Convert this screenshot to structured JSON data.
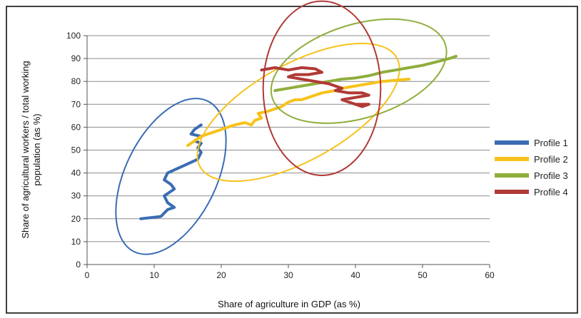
{
  "chart_data": {
    "type": "line",
    "title": "",
    "xlabel": "Share of agriculture in GDP (as %)",
    "ylabel_line1": "Share of agricultural workers / total working",
    "ylabel_line2": "population (as %)",
    "xlim": [
      0,
      60
    ],
    "ylim": [
      0,
      100
    ],
    "xticks": [
      0,
      10,
      20,
      30,
      40,
      50,
      60
    ],
    "yticks": [
      0,
      10,
      20,
      30,
      40,
      50,
      60,
      70,
      80,
      90,
      100
    ],
    "xtick_labels": [
      "0",
      "10",
      "20",
      "30",
      "40",
      "50",
      "60"
    ],
    "ytick_labels": [
      "0",
      "10",
      "20",
      "30",
      "40",
      "50",
      "60",
      "70",
      "80",
      "90",
      "100"
    ],
    "grid": "horizontal",
    "legend": "right",
    "series": [
      {
        "name": "Profile 1",
        "color": "#3a6cb4",
        "points": [
          [
            8,
            20
          ],
          [
            11,
            21
          ],
          [
            12,
            24
          ],
          [
            13,
            25
          ],
          [
            12,
            27
          ],
          [
            11.5,
            30
          ],
          [
            12,
            31
          ],
          [
            13,
            33
          ],
          [
            12.5,
            35
          ],
          [
            11.5,
            37
          ],
          [
            12,
            40
          ],
          [
            13.5,
            42
          ],
          [
            15,
            44
          ],
          [
            16.5,
            46
          ],
          [
            17,
            49
          ],
          [
            16.5,
            51
          ],
          [
            17,
            53
          ],
          [
            16,
            54
          ],
          [
            17,
            56
          ],
          [
            15.5,
            57
          ],
          [
            16,
            59
          ],
          [
            17,
            61
          ]
        ],
        "ellipse": {
          "cx": 12.5,
          "cy": 38.5,
          "rx": 25,
          "ry": 6.8,
          "angle_deg": -64
        }
      },
      {
        "name": "Profile 2",
        "color": "#f7c21c",
        "points": [
          [
            15,
            52
          ],
          [
            16,
            54
          ],
          [
            17,
            56
          ],
          [
            18,
            57
          ],
          [
            19,
            58
          ],
          [
            20,
            59
          ],
          [
            21,
            60
          ],
          [
            22,
            61
          ],
          [
            23.5,
            62
          ],
          [
            24.5,
            61
          ],
          [
            25,
            63
          ],
          [
            26,
            64
          ],
          [
            25.5,
            66
          ],
          [
            27,
            67
          ],
          [
            28,
            68
          ],
          [
            29,
            69
          ],
          [
            30,
            71
          ],
          [
            31,
            72
          ],
          [
            32,
            72
          ],
          [
            33,
            73
          ],
          [
            34,
            74
          ],
          [
            35,
            75
          ],
          [
            36,
            75.5
          ],
          [
            37,
            76
          ],
          [
            38,
            77
          ],
          [
            40,
            78
          ],
          [
            42,
            79
          ],
          [
            44,
            80
          ],
          [
            46,
            80.5
          ],
          [
            48,
            81
          ]
        ],
        "ellipse": {
          "cx": 31.5,
          "cy": 66.5,
          "rx": 33.5,
          "ry": 7.2,
          "angle_deg": -29
        }
      },
      {
        "name": "Profile 3",
        "color": "#8fae3c",
        "points": [
          [
            28,
            76
          ],
          [
            30,
            77
          ],
          [
            32,
            78
          ],
          [
            34,
            79
          ],
          [
            36,
            80
          ],
          [
            38,
            81
          ],
          [
            40,
            81.5
          ],
          [
            42,
            82.5
          ],
          [
            44,
            84
          ],
          [
            46,
            85
          ],
          [
            48,
            86
          ],
          [
            50,
            87
          ],
          [
            52,
            88.5
          ],
          [
            54,
            90
          ],
          [
            55,
            91
          ]
        ],
        "ellipse": {
          "cx": 40.5,
          "cy": 84.5,
          "rx": 27,
          "ry": 7,
          "angle_deg": -17
        }
      },
      {
        "name": "Profile 4",
        "color": "#b03a36",
        "points": [
          [
            26,
            85
          ],
          [
            28,
            86
          ],
          [
            30,
            85
          ],
          [
            32,
            86
          ],
          [
            34,
            85.5
          ],
          [
            35,
            84
          ],
          [
            33,
            83
          ],
          [
            31,
            83
          ],
          [
            30,
            82
          ],
          [
            32,
            81
          ],
          [
            34,
            80
          ],
          [
            36,
            79
          ],
          [
            37,
            78
          ],
          [
            38,
            77
          ],
          [
            37,
            76
          ],
          [
            39,
            75
          ],
          [
            41,
            75
          ],
          [
            42,
            74
          ],
          [
            40,
            73
          ],
          [
            38,
            72
          ],
          [
            39,
            71
          ],
          [
            40,
            70
          ],
          [
            42,
            70
          ],
          [
            41,
            69
          ],
          [
            40,
            70
          ]
        ],
        "ellipse": {
          "cx": 35,
          "cy": 77,
          "rx": 17.5,
          "ry": 13,
          "angle_deg": 0
        }
      }
    ]
  }
}
